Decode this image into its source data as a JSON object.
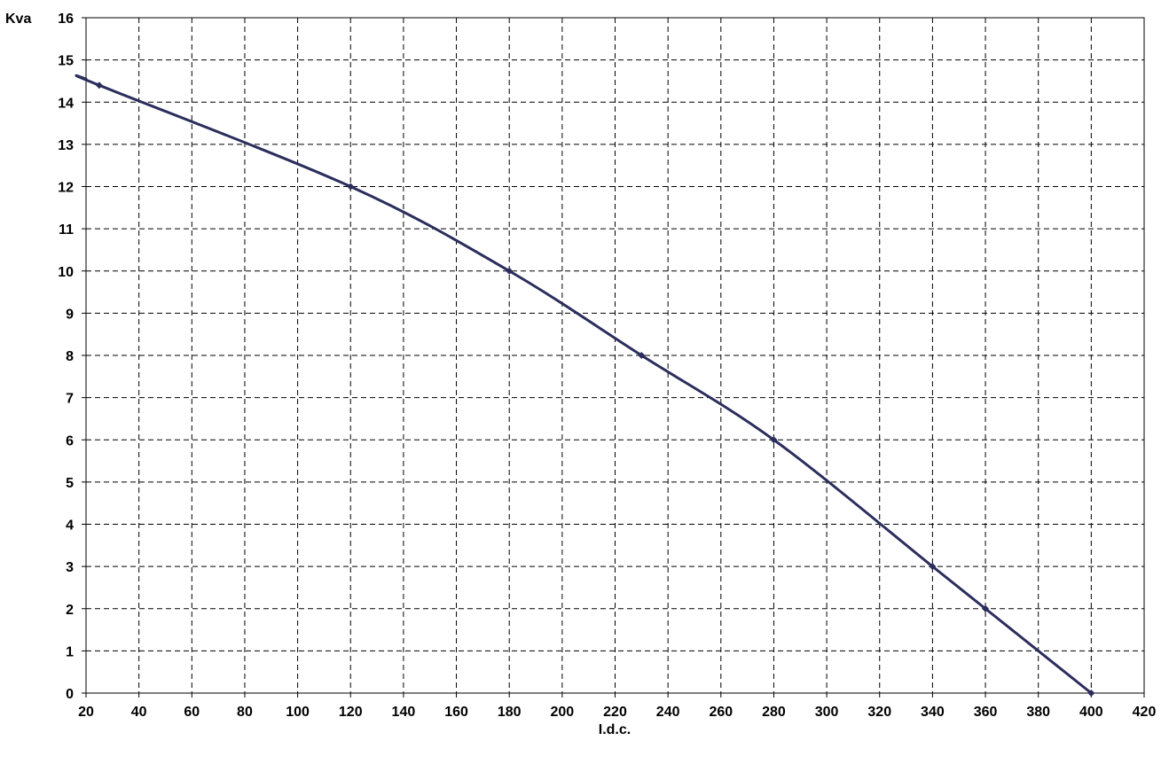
{
  "chart_data": {
    "type": "line",
    "title": "",
    "xlabel": "I.d.c.",
    "ylabel": "Kva",
    "xlim": [
      20,
      420
    ],
    "ylim": [
      0,
      16
    ],
    "x_ticks": [
      20,
      40,
      60,
      80,
      100,
      120,
      140,
      160,
      180,
      200,
      220,
      240,
      260,
      280,
      300,
      320,
      340,
      360,
      380,
      400,
      420
    ],
    "y_ticks": [
      0,
      1,
      2,
      3,
      4,
      5,
      6,
      7,
      8,
      9,
      10,
      11,
      12,
      13,
      14,
      15,
      16
    ],
    "grid": true,
    "grid_style": "dashed",
    "series": [
      {
        "color": "#2b2d5c",
        "marker": "diamond",
        "points": [
          {
            "x": 20,
            "y": 14.55
          },
          {
            "x": 25,
            "y": 14.4
          },
          {
            "x": 120,
            "y": 12
          },
          {
            "x": 180,
            "y": 10
          },
          {
            "x": 230,
            "y": 8
          },
          {
            "x": 280,
            "y": 6
          },
          {
            "x": 340,
            "y": 3
          },
          {
            "x": 360,
            "y": 2
          },
          {
            "x": 400,
            "y": 0
          }
        ]
      }
    ]
  }
}
